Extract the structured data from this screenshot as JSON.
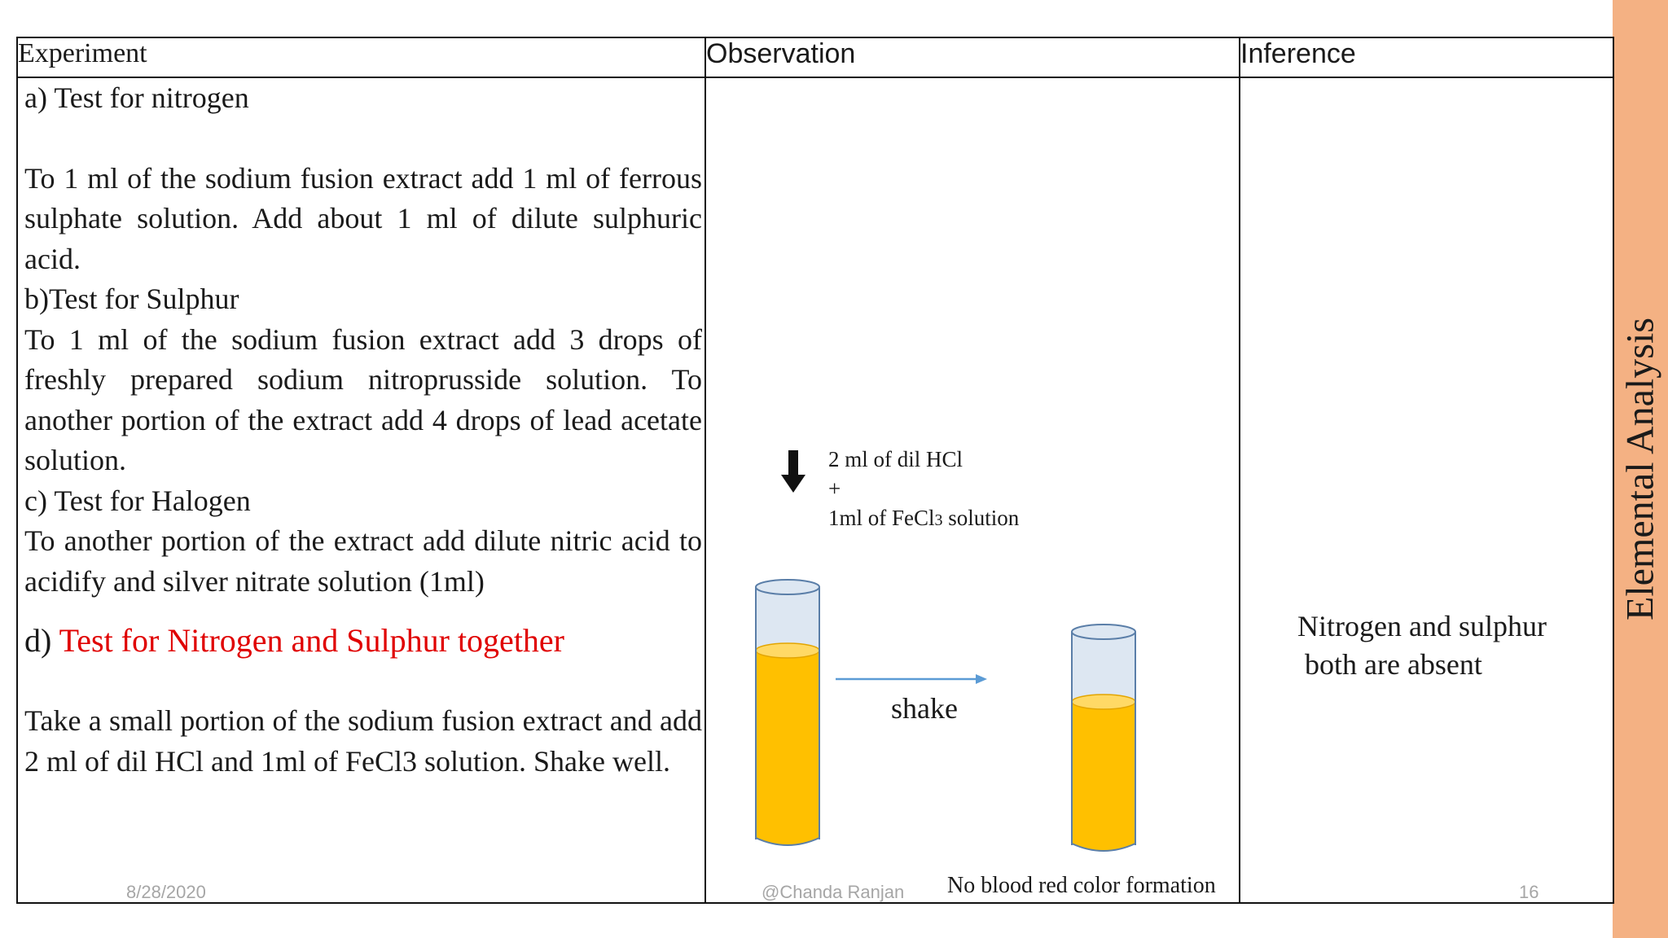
{
  "side_title": "Elemental Analysis",
  "headers": {
    "experiment": "Experiment",
    "observation": "Observation",
    "inference": "Inference"
  },
  "experiment": {
    "a_title": "a)   Test for nitrogen",
    "a_text": "To 1 ml of the sodium fusion extract add 1 ml of ferrous sulphate solution. Add about 1 ml of dilute sulphuric acid.",
    "b_title": "b)Test for Sulphur",
    "b_text": "To 1 ml of the sodium fusion extract add 3 drops of freshly prepared sodium nitroprusside solution. To another portion of the extract add 4 drops of lead acetate solution.",
    "c_title": "c) Test for Halogen",
    "c_text": "To another portion of the extract add dilute nitric acid to acidify and silver nitrate solution (1ml)",
    "d_prefix": "d) ",
    "d_title": "Test for Nitrogen and Sulphur together",
    "d_text": "Take a small portion of the sodium fusion extract and add 2 ml of dil HCl and 1ml of FeCl3 solution. Shake well."
  },
  "observation": {
    "reagent_line1": "2 ml of dil HCl",
    "reagent_line2": "+",
    "reagent_line3_prefix": "1ml of FeCl",
    "reagent_line3_sub": "3",
    "reagent_line3_suffix": " solution",
    "arrow_label": "shake",
    "result": "No blood red color formation",
    "liquid_color": "#ffc000"
  },
  "inference": {
    "line1": "Nitrogen and sulphur",
    "line2": " both are absent"
  },
  "footer": {
    "date": "8/28/2020",
    "author": "@Chanda Ranjan",
    "page": "16"
  }
}
